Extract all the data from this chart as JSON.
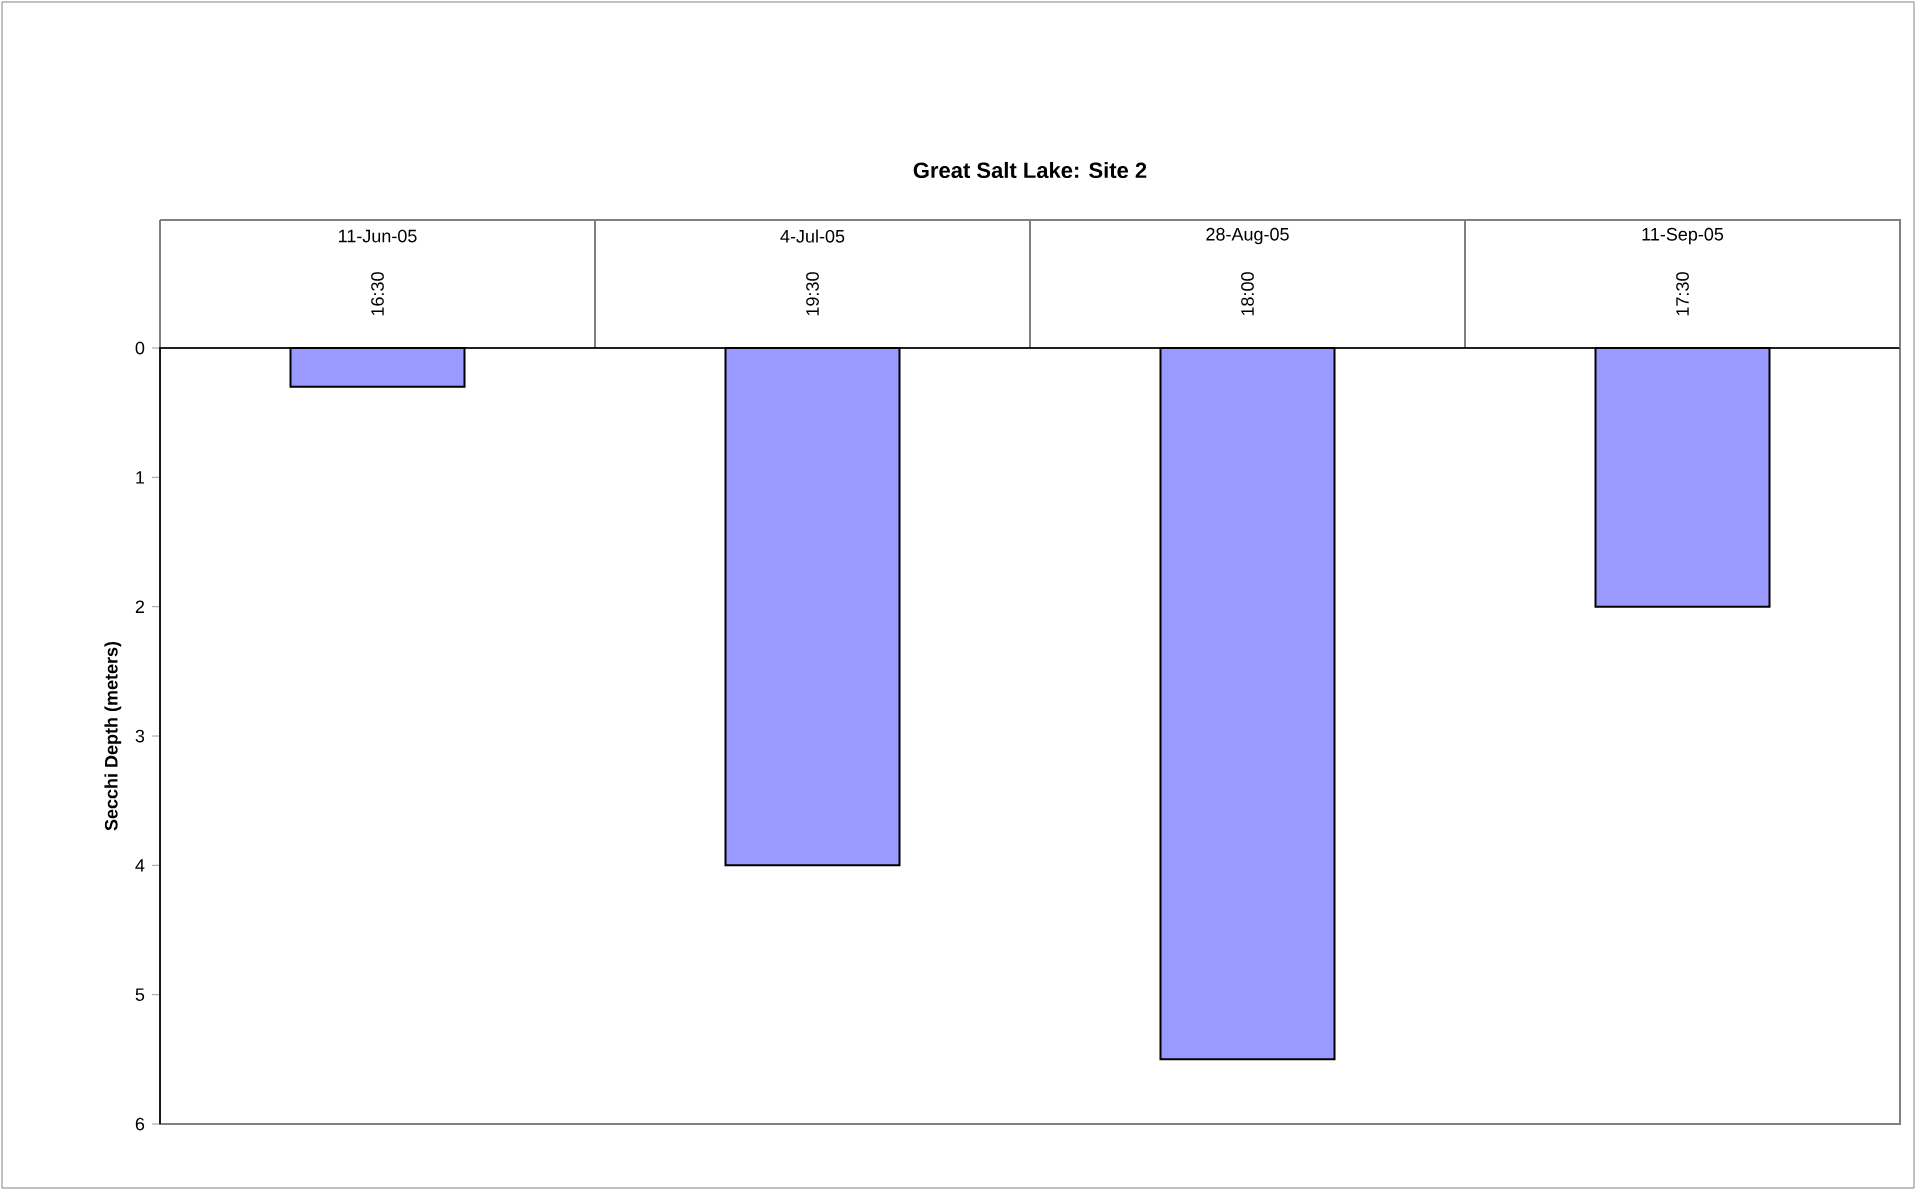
{
  "chart_data": {
    "type": "bar",
    "title": "Great Salt Lake: Site 2",
    "ylabel": "Secchi Depth (meters)",
    "categories": [
      "11-Jun-05",
      "4-Jul-05",
      "28-Aug-05",
      "11-Sep-05"
    ],
    "values": [
      0.3,
      4,
      5.5,
      2
    ],
    "color": "#9999ff",
    "ylim": [
      6,
      0
    ],
    "yticks": [
      0,
      1,
      2,
      3,
      4,
      5,
      6
    ],
    "annotations": [
      "16:30",
      "19:30",
      "18:00",
      "17:30"
    ]
  }
}
